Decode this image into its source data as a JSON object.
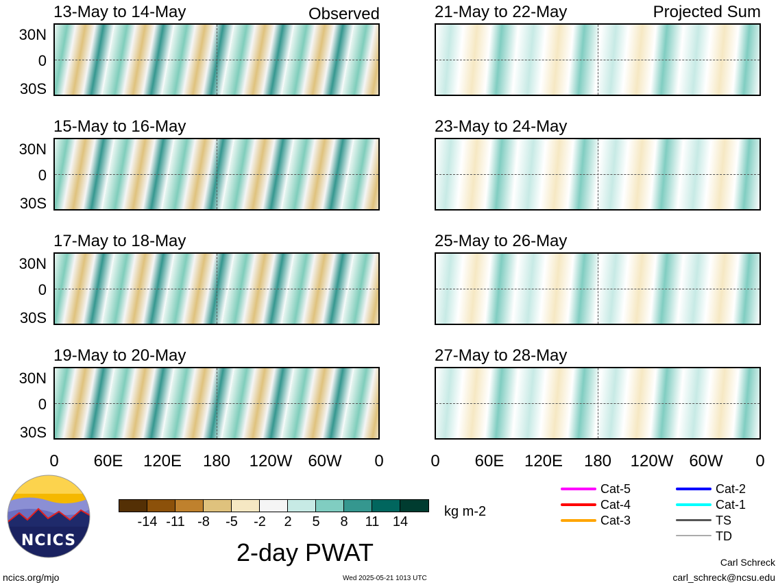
{
  "figure": {
    "title": "2-day PWAT",
    "units": "kg m-2",
    "observed_label": "Observed",
    "projected_label": "Projected Sum"
  },
  "panels": {
    "left": [
      {
        "title": "13-May to 14-May"
      },
      {
        "title": "15-May to 16-May"
      },
      {
        "title": "17-May to 18-May"
      },
      {
        "title": "19-May to 20-May"
      }
    ],
    "right": [
      {
        "title": "21-May to 22-May"
      },
      {
        "title": "23-May to 24-May"
      },
      {
        "title": "25-May to 26-May"
      },
      {
        "title": "27-May to 28-May"
      }
    ]
  },
  "axes": {
    "lat_ticks": [
      "30N",
      "0",
      "30S"
    ],
    "lon_ticks": [
      "0",
      "60E",
      "120E",
      "180",
      "120W",
      "60W",
      "0"
    ]
  },
  "colorbar": {
    "colors": [
      "#543005",
      "#8c510a",
      "#bf812d",
      "#dfc27d",
      "#f6e8c3",
      "#f5f5f5",
      "#c7eae5",
      "#80cdc1",
      "#35978f",
      "#01665e",
      "#003c30"
    ],
    "tick_labels": [
      "-14",
      "-11",
      "-8",
      "-5",
      "-2",
      "2",
      "5",
      "8",
      "11",
      "14"
    ]
  },
  "legend": [
    {
      "label": "Cat-5",
      "color": "#ff00ff"
    },
    {
      "label": "Cat-4",
      "color": "#ff0000"
    },
    {
      "label": "Cat-3",
      "color": "#ffa500"
    },
    {
      "label": "Cat-2",
      "color": "#0000ff"
    },
    {
      "label": "Cat-1",
      "color": "#00ffff"
    },
    {
      "label": "TS",
      "color": "#555555"
    },
    {
      "label": "TD",
      "color": "#aaaaaa"
    }
  ],
  "logo": {
    "text": "NCICS"
  },
  "footer": {
    "url": "ncics.org/mjo",
    "timestamp": "Wed 2025-05-21 1013 UTC",
    "author": "Carl Schreck",
    "email": "carl_schreck@ncsu.edu"
  }
}
